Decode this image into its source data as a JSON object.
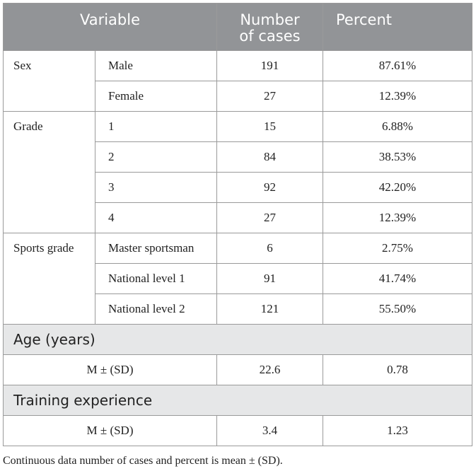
{
  "table": {
    "headers": {
      "variable": "Variable",
      "cases_line1": "Number",
      "cases_line2": "of cases",
      "percent": "Percent"
    },
    "groups": [
      {
        "label": "Sex",
        "rows": [
          {
            "sub": "Male",
            "cases": "191",
            "percent": "87.61%"
          },
          {
            "sub": "Female",
            "cases": "27",
            "percent": "12.39%"
          }
        ]
      },
      {
        "label": "Grade",
        "rows": [
          {
            "sub": "1",
            "cases": "15",
            "percent": "6.88%"
          },
          {
            "sub": "2",
            "cases": "84",
            "percent": "38.53%"
          },
          {
            "sub": "3",
            "cases": "92",
            "percent": "42.20%"
          },
          {
            "sub": "4",
            "cases": "27",
            "percent": "12.39%"
          }
        ]
      },
      {
        "label": "Sports grade",
        "rows": [
          {
            "sub": "Master sportsman",
            "cases": "6",
            "percent": "2.75%"
          },
          {
            "sub": "National level 1",
            "cases": "91",
            "percent": "41.74%"
          },
          {
            "sub": "National level 2",
            "cases": "121",
            "percent": "55.50%"
          }
        ]
      }
    ],
    "sections": [
      {
        "title": "Age (years)",
        "stat": "M ± (SD)",
        "mean": "22.6",
        "sd": "0.78"
      },
      {
        "title": "Training experience",
        "stat": "M ± (SD)",
        "mean": "3.4",
        "sd": "1.23"
      }
    ]
  },
  "footnote": "Continuous data number of cases and percent is mean ± (SD)."
}
